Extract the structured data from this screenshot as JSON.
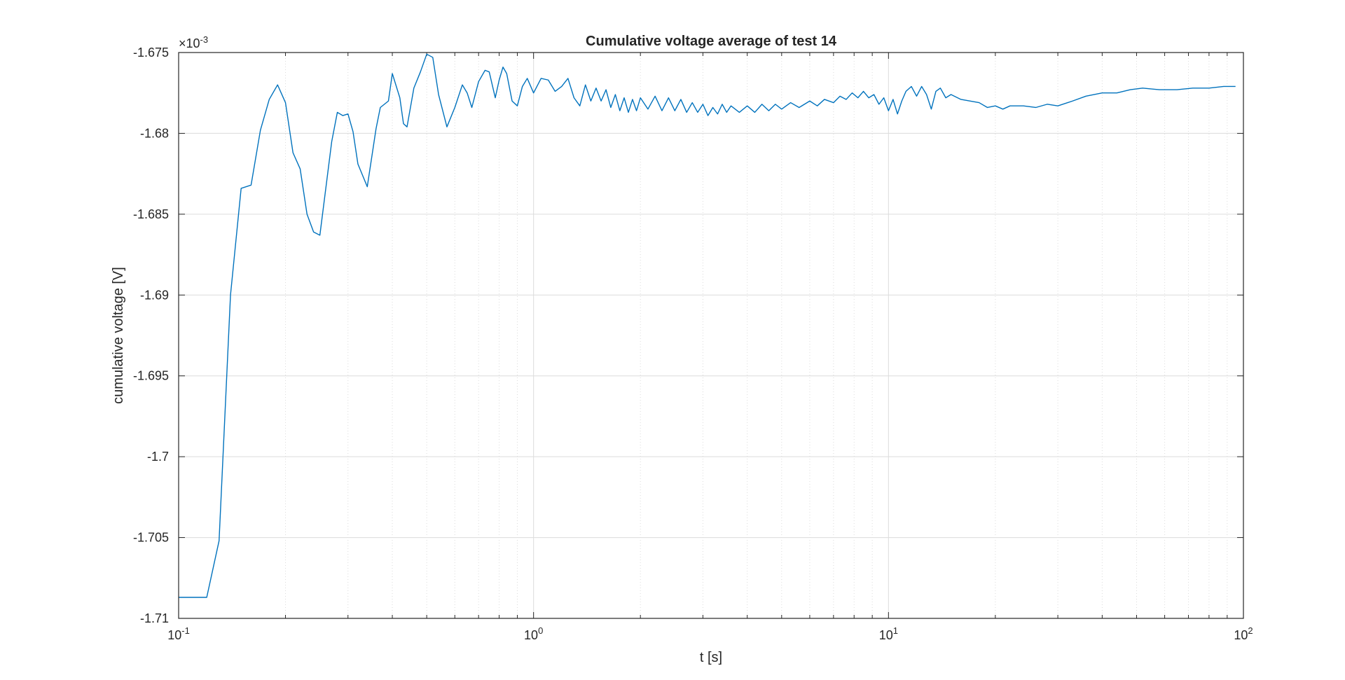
{
  "chart_data": {
    "type": "line",
    "title": "Cumulative voltage average of test 14",
    "xlabel": "t [s]",
    "ylabel": "cumulative voltage [V]",
    "xscale": "log",
    "xlim": [
      0.1,
      100
    ],
    "ylim": [
      -0.00171,
      -0.001675
    ],
    "y_exponent_label": {
      "prefix": "×10",
      "power": "-3"
    },
    "xticks": [
      {
        "value": 0.1,
        "base": "10",
        "power": "-1"
      },
      {
        "value": 1,
        "base": "10",
        "power": "0"
      },
      {
        "value": 10,
        "base": "10",
        "power": "1"
      },
      {
        "value": 100,
        "base": "10",
        "power": "2"
      }
    ],
    "yticks": [
      {
        "value": -0.001675,
        "label": "-1.675"
      },
      {
        "value": -0.00168,
        "label": "-1.68"
      },
      {
        "value": -0.001685,
        "label": "-1.685"
      },
      {
        "value": -0.00169,
        "label": "-1.69"
      },
      {
        "value": -0.001695,
        "label": "-1.695"
      },
      {
        "value": -0.0017,
        "label": "-1.7"
      },
      {
        "value": -0.001705,
        "label": "-1.705"
      },
      {
        "value": -0.00171,
        "label": "-1.71"
      }
    ],
    "grid": true,
    "minor_grid_x": true,
    "series": [
      {
        "color": "#0072BD",
        "points": [
          [
            0.1,
            -0.0017087
          ],
          [
            0.12,
            -0.0017087
          ],
          [
            0.13,
            -0.0017052
          ],
          [
            0.14,
            -0.00169
          ],
          [
            0.15,
            -0.0016834
          ],
          [
            0.16,
            -0.0016832
          ],
          [
            0.17,
            -0.0016798
          ],
          [
            0.18,
            -0.0016779
          ],
          [
            0.19,
            -0.001677
          ],
          [
            0.2,
            -0.0016781
          ],
          [
            0.21,
            -0.0016812
          ],
          [
            0.22,
            -0.0016822
          ],
          [
            0.23,
            -0.001685
          ],
          [
            0.24,
            -0.0016861
          ],
          [
            0.25,
            -0.0016863
          ],
          [
            0.27,
            -0.0016805
          ],
          [
            0.28,
            -0.0016787
          ],
          [
            0.29,
            -0.0016789
          ],
          [
            0.3,
            -0.0016788
          ],
          [
            0.31,
            -0.0016799
          ],
          [
            0.32,
            -0.0016819
          ],
          [
            0.34,
            -0.0016833
          ],
          [
            0.36,
            -0.0016797
          ],
          [
            0.37,
            -0.0016784
          ],
          [
            0.39,
            -0.001678
          ],
          [
            0.4,
            -0.0016763
          ],
          [
            0.42,
            -0.0016778
          ],
          [
            0.43,
            -0.0016794
          ],
          [
            0.44,
            -0.0016796
          ],
          [
            0.46,
            -0.0016772
          ],
          [
            0.48,
            -0.0016762
          ],
          [
            0.5,
            -0.0016751
          ],
          [
            0.52,
            -0.0016753
          ],
          [
            0.54,
            -0.0016776
          ],
          [
            0.57,
            -0.0016796
          ],
          [
            0.6,
            -0.0016784
          ],
          [
            0.63,
            -0.001677
          ],
          [
            0.65,
            -0.0016775
          ],
          [
            0.67,
            -0.0016784
          ],
          [
            0.7,
            -0.0016768
          ],
          [
            0.73,
            -0.0016761
          ],
          [
            0.75,
            -0.0016762
          ],
          [
            0.78,
            -0.0016778
          ],
          [
            0.8,
            -0.0016767
          ],
          [
            0.82,
            -0.0016759
          ],
          [
            0.84,
            -0.0016763
          ],
          [
            0.87,
            -0.001678
          ],
          [
            0.9,
            -0.0016783
          ],
          [
            0.93,
            -0.0016771
          ],
          [
            0.96,
            -0.0016766
          ],
          [
            1.0,
            -0.0016775
          ],
          [
            1.05,
            -0.0016766
          ],
          [
            1.1,
            -0.0016767
          ],
          [
            1.15,
            -0.0016774
          ],
          [
            1.2,
            -0.0016771
          ],
          [
            1.25,
            -0.0016766
          ],
          [
            1.3,
            -0.0016778
          ],
          [
            1.35,
            -0.0016783
          ],
          [
            1.4,
            -0.001677
          ],
          [
            1.45,
            -0.001678
          ],
          [
            1.5,
            -0.0016772
          ],
          [
            1.55,
            -0.001678
          ],
          [
            1.6,
            -0.0016773
          ],
          [
            1.65,
            -0.0016784
          ],
          [
            1.7,
            -0.0016776
          ],
          [
            1.75,
            -0.0016786
          ],
          [
            1.8,
            -0.0016778
          ],
          [
            1.85,
            -0.0016787
          ],
          [
            1.9,
            -0.0016779
          ],
          [
            1.95,
            -0.0016786
          ],
          [
            2.0,
            -0.0016778
          ],
          [
            2.1,
            -0.0016785
          ],
          [
            2.2,
            -0.0016777
          ],
          [
            2.3,
            -0.0016786
          ],
          [
            2.4,
            -0.0016778
          ],
          [
            2.5,
            -0.0016786
          ],
          [
            2.6,
            -0.0016779
          ],
          [
            2.7,
            -0.0016787
          ],
          [
            2.8,
            -0.0016781
          ],
          [
            2.9,
            -0.0016787
          ],
          [
            3.0,
            -0.0016782
          ],
          [
            3.1,
            -0.0016789
          ],
          [
            3.2,
            -0.0016784
          ],
          [
            3.3,
            -0.0016788
          ],
          [
            3.4,
            -0.0016782
          ],
          [
            3.5,
            -0.0016787
          ],
          [
            3.6,
            -0.0016783
          ],
          [
            3.8,
            -0.0016787
          ],
          [
            4.0,
            -0.0016783
          ],
          [
            4.2,
            -0.0016787
          ],
          [
            4.4,
            -0.0016782
          ],
          [
            4.6,
            -0.0016786
          ],
          [
            4.8,
            -0.0016782
          ],
          [
            5.0,
            -0.0016785
          ],
          [
            5.3,
            -0.0016781
          ],
          [
            5.6,
            -0.0016784
          ],
          [
            6.0,
            -0.001678
          ],
          [
            6.3,
            -0.0016783
          ],
          [
            6.6,
            -0.0016779
          ],
          [
            7.0,
            -0.0016781
          ],
          [
            7.3,
            -0.0016777
          ],
          [
            7.6,
            -0.0016779
          ],
          [
            7.9,
            -0.0016775
          ],
          [
            8.2,
            -0.0016778
          ],
          [
            8.5,
            -0.0016774
          ],
          [
            8.8,
            -0.0016778
          ],
          [
            9.1,
            -0.0016776
          ],
          [
            9.4,
            -0.0016782
          ],
          [
            9.7,
            -0.0016778
          ],
          [
            10.0,
            -0.0016786
          ],
          [
            10.3,
            -0.0016779
          ],
          [
            10.6,
            -0.0016788
          ],
          [
            10.9,
            -0.001678
          ],
          [
            11.2,
            -0.0016774
          ],
          [
            11.6,
            -0.0016771
          ],
          [
            12.0,
            -0.0016777
          ],
          [
            12.4,
            -0.0016771
          ],
          [
            12.8,
            -0.0016776
          ],
          [
            13.2,
            -0.0016785
          ],
          [
            13.6,
            -0.0016774
          ],
          [
            14.0,
            -0.0016772
          ],
          [
            14.5,
            -0.0016778
          ],
          [
            15.0,
            -0.0016776
          ],
          [
            16.0,
            -0.0016779
          ],
          [
            17.0,
            -0.001678
          ],
          [
            18.0,
            -0.0016781
          ],
          [
            19.0,
            -0.0016784
          ],
          [
            20.0,
            -0.0016783
          ],
          [
            21.0,
            -0.0016785
          ],
          [
            22.0,
            -0.0016783
          ],
          [
            24.0,
            -0.0016783
          ],
          [
            26.0,
            -0.0016784
          ],
          [
            28.0,
            -0.0016782
          ],
          [
            30.0,
            -0.0016783
          ],
          [
            33.0,
            -0.001678
          ],
          [
            36.0,
            -0.0016777
          ],
          [
            40.0,
            -0.0016775
          ],
          [
            44.0,
            -0.0016775
          ],
          [
            48.0,
            -0.0016773
          ],
          [
            52.0,
            -0.0016772
          ],
          [
            58.0,
            -0.0016773
          ],
          [
            65.0,
            -0.0016773
          ],
          [
            72.0,
            -0.0016772
          ],
          [
            80.0,
            -0.0016772
          ],
          [
            88.0,
            -0.0016771
          ],
          [
            95.0,
            -0.0016771
          ]
        ]
      }
    ]
  }
}
